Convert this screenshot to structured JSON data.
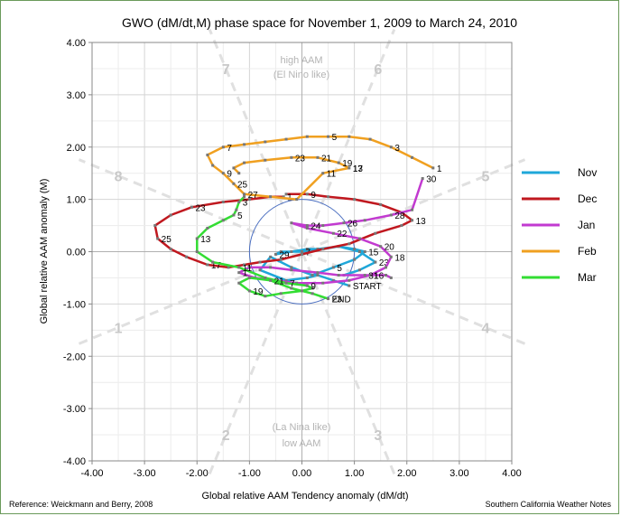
{
  "chart_data": {
    "type": "line",
    "title": "GWO (dM/dt,M)  phase space for November 1, 2009 to March 24, 2010",
    "xlabel": "Global relative AAM Tendency anomaly  (dM/dt)",
    "ylabel": "Global relative AAM anomaly  (M)",
    "xlim": [
      -4,
      4
    ],
    "ylim": [
      -4,
      4
    ],
    "x_ticks": [
      "-4.00",
      "-3.00",
      "-2.00",
      "-1.00",
      "0.00",
      "1.00",
      "2.00",
      "3.00",
      "4.00"
    ],
    "y_ticks": [
      "4.00",
      "3.00",
      "2.00",
      "1.00",
      "0.00",
      "-1.00",
      "-2.00",
      "-3.00",
      "-4.00"
    ],
    "grid": true,
    "legend_position": "right",
    "phase_numbers": [
      {
        "label": "1",
        "x": -3.5,
        "y": -1.45
      },
      {
        "label": "2",
        "x": -1.45,
        "y": -3.5
      },
      {
        "label": "3",
        "x": 1.45,
        "y": -3.5
      },
      {
        "label": "4",
        "x": 3.5,
        "y": -1.45
      },
      {
        "label": "5",
        "x": 3.5,
        "y": 1.45
      },
      {
        "label": "6",
        "x": 1.45,
        "y": 3.5
      },
      {
        "label": "7",
        "x": -1.45,
        "y": 3.5
      },
      {
        "label": "8",
        "x": -3.5,
        "y": 1.45
      }
    ],
    "annotations": {
      "top_line1": "high AAM",
      "top_line2": "(El Nino like)",
      "bottom_line1": "(La Nina like)",
      "bottom_line2": "low AAM",
      "start": "START",
      "end": "END"
    },
    "series": [
      {
        "name": "Nov",
        "color": "#1fa7d9",
        "x": [
          0.9,
          0.6,
          0.3,
          0.1,
          -0.3,
          -0.8,
          -0.6,
          -0.2,
          0.2,
          0.6,
          1.0,
          1.2,
          1.0,
          0.7,
          0.4,
          0.1,
          -0.2,
          -0.5,
          -0.4,
          0.0,
          0.3,
          0.7,
          1.1,
          1.4,
          1.1,
          0.8
        ],
        "y": [
          -0.65,
          -0.55,
          -0.45,
          -0.5,
          -0.55,
          -0.35,
          -0.1,
          -0.3,
          -0.45,
          -0.3,
          -0.15,
          0.0,
          0.05,
          0.1,
          0.05,
          0.05,
          0.0,
          -0.05,
          0.0,
          0.0,
          0.05,
          0.1,
          0.0,
          -0.2,
          -0.35,
          -0.45
        ],
        "labels": [
          {
            "t": "START",
            "i": 0
          },
          {
            "t": "5",
            "i": 9
          },
          {
            "t": "15",
            "i": 11
          },
          {
            "t": "29",
            "i": 17
          },
          {
            "t": "7",
            "i": 19
          },
          {
            "t": "23",
            "i": 23
          }
        ]
      },
      {
        "name": "Dec",
        "color": "#c0181f",
        "x": [
          -0.35,
          -0.6,
          -1.0,
          -1.5,
          -2.1,
          -2.5,
          -2.8,
          -2.75,
          -2.5,
          -2.2,
          -1.8,
          -1.4,
          -1.1,
          -0.8,
          -0.4,
          0.0,
          0.4,
          0.9,
          1.4,
          1.9,
          2.1,
          1.9,
          1.5,
          1.0,
          0.5,
          0.1,
          -0.3
        ],
        "y": [
          1.05,
          1.05,
          1.0,
          0.95,
          0.85,
          0.7,
          0.5,
          0.25,
          0.05,
          -0.1,
          -0.25,
          -0.3,
          -0.25,
          -0.2,
          -0.15,
          -0.05,
          0.05,
          0.15,
          0.35,
          0.5,
          0.6,
          0.75,
          0.9,
          1.0,
          1.05,
          1.1,
          1.1
        ],
        "labels": [
          {
            "t": "1",
            "i": 0
          },
          {
            "t": "23",
            "i": 4
          },
          {
            "t": "25",
            "i": 7
          },
          {
            "t": "17",
            "i": 10
          },
          {
            "t": "13",
            "i": 20
          },
          {
            "t": "9",
            "i": 25
          }
        ]
      },
      {
        "name": "Jan",
        "color": "#c23ad0",
        "x": [
          2.3,
          2.1,
          1.7,
          1.2,
          0.8,
          0.4,
          0.1,
          -0.2,
          0.1,
          0.6,
          1.1,
          1.5,
          1.7,
          1.6,
          1.3,
          0.9,
          0.4,
          -0.1,
          -0.5,
          -0.9,
          -1.2,
          -1.0,
          -0.6,
          -0.2,
          0.3,
          0.7,
          1.2,
          1.6,
          1.7
        ],
        "y": [
          1.4,
          0.8,
          0.7,
          0.6,
          0.55,
          0.5,
          0.5,
          0.55,
          0.45,
          0.35,
          0.25,
          0.1,
          -0.1,
          -0.3,
          -0.45,
          -0.55,
          -0.6,
          -0.6,
          -0.55,
          -0.5,
          -0.4,
          -0.3,
          -0.3,
          -0.35,
          -0.4,
          -0.45,
          -0.45,
          -0.45,
          -0.5
        ],
        "labels": [
          {
            "t": "30",
            "i": 0
          },
          {
            "t": "28",
            "i": 2
          },
          {
            "t": "26",
            "i": 4
          },
          {
            "t": "24",
            "i": 6
          },
          {
            "t": "22",
            "i": 9
          },
          {
            "t": "20",
            "i": 11
          },
          {
            "t": "18",
            "i": 12
          },
          {
            "t": "16",
            "i": 14
          },
          {
            "t": "1",
            "i": 20
          },
          {
            "t": "31",
            "i": 26
          }
        ]
      },
      {
        "name": "Feb",
        "color": "#f0a020",
        "x": [
          2.5,
          2.1,
          1.7,
          1.3,
          0.9,
          0.5,
          0.1,
          -0.3,
          -0.7,
          -1.1,
          -1.5,
          -1.8,
          -1.7,
          -1.5,
          -1.3,
          -1.1,
          -0.6,
          -0.1,
          0.4,
          0.9,
          0.7,
          0.3,
          -0.2,
          -0.7,
          -1.1,
          -1.3,
          -1.2
        ],
        "y": [
          1.6,
          1.8,
          2.0,
          2.15,
          2.2,
          2.2,
          2.2,
          2.15,
          2.1,
          2.05,
          2.0,
          1.85,
          1.65,
          1.5,
          1.3,
          1.1,
          1.05,
          1.0,
          1.5,
          1.6,
          1.7,
          1.8,
          1.8,
          1.75,
          1.7,
          1.6,
          1.5
        ],
        "labels": [
          {
            "t": "1",
            "i": 0
          },
          {
            "t": "3",
            "i": 2
          },
          {
            "t": "5",
            "i": 5
          },
          {
            "t": "7",
            "i": 10
          },
          {
            "t": "13",
            "i": 19
          },
          {
            "t": "11",
            "i": 18
          },
          {
            "t": "9",
            "i": 13
          },
          {
            "t": "27",
            "i": 15
          },
          {
            "t": "25",
            "i": 14
          },
          {
            "t": "23",
            "i": 22
          },
          {
            "t": "21",
            "i": 21
          },
          {
            "t": "19",
            "i": 20
          },
          {
            "t": "17",
            "i": 19
          }
        ]
      },
      {
        "name": "Mar",
        "color": "#33dd33",
        "x": [
          -1.1,
          -1.2,
          -1.25,
          -1.3,
          -1.5,
          -1.8,
          -2.0,
          -2.0,
          -1.7,
          -1.2,
          -0.7,
          -0.3,
          0.1,
          0.2,
          0.0,
          -0.4,
          -0.7,
          -1.0,
          -1.2,
          -1.0,
          -0.6,
          -0.2,
          0.2,
          0.5
        ],
        "y": [
          1.05,
          0.95,
          0.8,
          0.7,
          0.6,
          0.45,
          0.25,
          0.0,
          -0.2,
          -0.3,
          -0.5,
          -0.6,
          -0.65,
          -0.7,
          -0.75,
          -0.8,
          -0.85,
          -0.75,
          -0.6,
          -0.5,
          -0.55,
          -0.7,
          -0.8,
          -0.9
        ],
        "labels": [
          {
            "t": "3",
            "i": 1
          },
          {
            "t": "5",
            "i": 3
          },
          {
            "t": "13",
            "i": 6
          },
          {
            "t": "11",
            "i": 9
          },
          {
            "t": "7",
            "i": 11
          },
          {
            "t": "9",
            "i": 12
          },
          {
            "t": "19",
            "i": 17
          },
          {
            "t": "21",
            "i": 20
          },
          {
            "t": "23",
            "i": 23
          }
        ]
      }
    ]
  },
  "footer": {
    "reference": "Reference: Weickmann and Berry, 2008",
    "credit": "Southern California Weather Notes"
  }
}
